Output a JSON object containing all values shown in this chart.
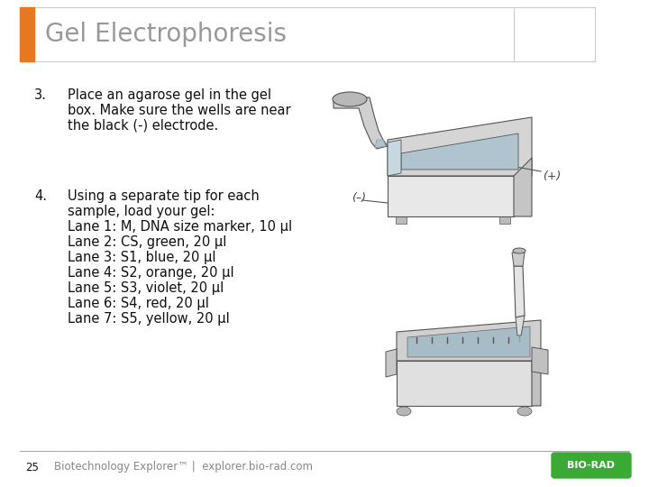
{
  "title": "Gel Electrophoresis",
  "title_fontsize": 20,
  "title_color": "#999999",
  "header_bar_color": "#E87722",
  "header_border_color": "#CCCCCC",
  "step3_number": "3.",
  "step3_text_line1": "Place an agarose gel in the gel",
  "step3_text_line2": "box. Make sure the wells are near",
  "step3_text_line3": "the black (-) electrode.",
  "step4_number": "4.",
  "step4_text_line1": "Using a separate tip for each",
  "step4_text_line2": "sample, load your gel:",
  "step4_lanes": [
    "Lane 1: M, DNA size marker, 10 μl",
    "Lane 2: CS, green, 20 μl",
    "Lane 3: S1, blue, 20 μl",
    "Lane 4: S2, orange, 20 μl",
    "Lane 5: S3, violet, 20 μl",
    "Lane 6: S4, red, 20 μl",
    "Lane 7: S5, yellow, 20 μl"
  ],
  "footer_page": "25",
  "footer_text": "Biotechnology Explorer™ |  explorer.bio-rad.com",
  "body_fontsize": 10.5,
  "footer_fontsize": 8.5,
  "bg_color": "#FFFFFF",
  "text_color": "#111111",
  "footer_line_color": "#AAAAAA",
  "biorad_bg": "#3BAA35",
  "biorad_text": "BIO-RAD"
}
